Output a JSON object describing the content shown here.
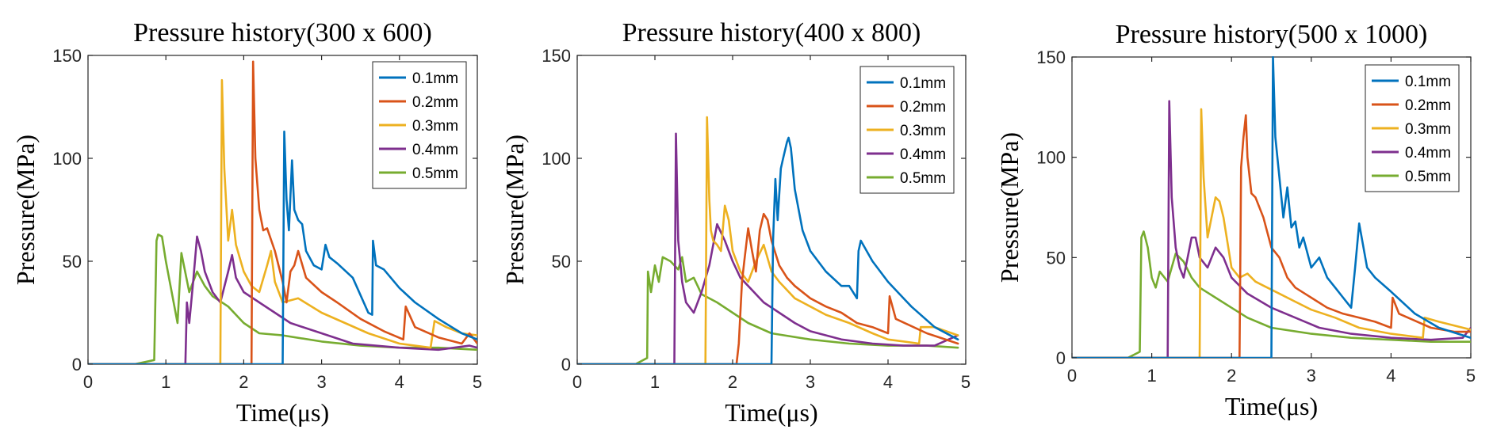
{
  "chart_data": [
    {
      "type": "line",
      "title": "Pressure history(300 x 600)",
      "xlabel": "Time(μs)",
      "ylabel": "Pressure(MPa)",
      "xlim": [
        0,
        5
      ],
      "ylim": [
        0,
        150
      ],
      "xticks": [
        "0",
        "1",
        "2",
        "3",
        "4",
        "5"
      ],
      "yticks": [
        "0",
        "50",
        "100",
        "150"
      ],
      "grid": false,
      "legend": "top-right",
      "series": [
        {
          "name": "0.1mm",
          "color": "#0072BD",
          "x": [
            0,
            2.5,
            2.52,
            2.55,
            2.58,
            2.62,
            2.65,
            2.7,
            2.75,
            2.8,
            2.9,
            3.0,
            3.05,
            3.1,
            3.2,
            3.4,
            3.6,
            3.65,
            3.66,
            3.7,
            3.8,
            4.0,
            4.2,
            4.5,
            4.8,
            5.0
          ],
          "y": [
            0,
            0,
            113,
            80,
            65,
            99,
            75,
            70,
            68,
            55,
            48,
            46,
            58,
            52,
            49,
            42,
            25,
            24,
            60,
            48,
            46,
            37,
            30,
            22,
            15,
            12
          ]
        },
        {
          "name": "0.2mm",
          "color": "#D95319",
          "x": [
            0,
            2.1,
            2.12,
            2.15,
            2.2,
            2.25,
            2.3,
            2.4,
            2.5,
            2.55,
            2.6,
            2.65,
            2.7,
            2.8,
            3.0,
            3.2,
            3.5,
            3.8,
            4.05,
            4.08,
            4.2,
            4.5,
            4.8,
            4.9,
            5.0
          ],
          "y": [
            0,
            0,
            147,
            100,
            75,
            65,
            66,
            55,
            40,
            30,
            45,
            48,
            55,
            42,
            35,
            30,
            22,
            16,
            12,
            28,
            18,
            13,
            10,
            15,
            10
          ]
        },
        {
          "name": "0.3mm",
          "color": "#EDB120",
          "x": [
            0,
            1.7,
            1.72,
            1.75,
            1.8,
            1.85,
            1.9,
            2.0,
            2.1,
            2.2,
            2.3,
            2.35,
            2.4,
            2.5,
            2.7,
            3.0,
            3.3,
            3.6,
            4.0,
            4.4,
            4.45,
            4.6,
            4.8,
            5.0
          ],
          "y": [
            0,
            0,
            138,
            95,
            60,
            75,
            58,
            45,
            38,
            35,
            48,
            55,
            40,
            30,
            32,
            25,
            20,
            15,
            10,
            8,
            21,
            18,
            15,
            14
          ]
        },
        {
          "name": "0.4mm",
          "color": "#7E2F8E",
          "x": [
            0,
            1.25,
            1.27,
            1.3,
            1.35,
            1.4,
            1.45,
            1.5,
            1.6,
            1.7,
            1.8,
            1.85,
            1.9,
            2.0,
            2.2,
            2.4,
            2.6,
            3.0,
            3.4,
            4.0,
            4.5,
            4.9,
            5.0
          ],
          "y": [
            0,
            0,
            30,
            20,
            40,
            62,
            55,
            45,
            35,
            30,
            45,
            53,
            42,
            35,
            30,
            25,
            20,
            15,
            10,
            8,
            7,
            9,
            8
          ]
        },
        {
          "name": "0.5mm",
          "color": "#77AC30",
          "x": [
            0,
            0.6,
            0.85,
            0.88,
            0.9,
            0.95,
            1.0,
            1.05,
            1.1,
            1.15,
            1.2,
            1.3,
            1.4,
            1.5,
            1.6,
            1.8,
            2.0,
            2.2,
            2.5,
            3.0,
            3.5,
            4.0,
            4.5,
            5.0
          ],
          "y": [
            0,
            0,
            2,
            60,
            63,
            62,
            50,
            40,
            30,
            20,
            54,
            35,
            45,
            38,
            33,
            28,
            20,
            15,
            14,
            11,
            9,
            8,
            8,
            7
          ]
        }
      ]
    },
    {
      "type": "line",
      "title": "Pressure history(400 x 800)",
      "xlabel": "Time(μs)",
      "ylabel": "Pressure(MPa)",
      "xlim": [
        0,
        5
      ],
      "ylim": [
        0,
        150
      ],
      "xticks": [
        "0",
        "1",
        "2",
        "3",
        "4",
        "5"
      ],
      "yticks": [
        "0",
        "50",
        "100",
        "150"
      ],
      "grid": false,
      "legend": "top-right",
      "series": [
        {
          "name": "0.1mm",
          "color": "#0072BD",
          "x": [
            0,
            2.5,
            2.52,
            2.55,
            2.58,
            2.62,
            2.65,
            2.7,
            2.72,
            2.75,
            2.8,
            2.9,
            3.0,
            3.2,
            3.4,
            3.5,
            3.6,
            3.62,
            3.65,
            3.8,
            4.0,
            4.3,
            4.6,
            4.9
          ],
          "y": [
            0,
            0,
            60,
            90,
            70,
            95,
            100,
            108,
            110,
            105,
            85,
            65,
            55,
            45,
            38,
            38,
            32,
            55,
            60,
            50,
            40,
            28,
            18,
            12
          ]
        },
        {
          "name": "0.2mm",
          "color": "#D95319",
          "x": [
            0,
            2.05,
            2.08,
            2.12,
            2.15,
            2.2,
            2.25,
            2.3,
            2.35,
            2.4,
            2.45,
            2.5,
            2.6,
            2.7,
            2.8,
            3.0,
            3.2,
            3.4,
            3.6,
            3.8,
            4.0,
            4.02,
            4.1,
            4.5,
            4.9
          ],
          "y": [
            0,
            0,
            10,
            40,
            50,
            66,
            55,
            45,
            65,
            73,
            70,
            60,
            48,
            42,
            38,
            32,
            28,
            25,
            20,
            18,
            15,
            33,
            22,
            15,
            10
          ]
        },
        {
          "name": "0.3mm",
          "color": "#EDB120",
          "x": [
            0,
            1.65,
            1.67,
            1.7,
            1.72,
            1.75,
            1.8,
            1.85,
            1.9,
            1.95,
            2.0,
            2.1,
            2.2,
            2.3,
            2.4,
            2.5,
            2.6,
            2.8,
            3.0,
            3.2,
            3.5,
            3.8,
            4.0,
            4.4,
            4.42,
            4.6,
            4.9
          ],
          "y": [
            0,
            0,
            120,
            80,
            65,
            60,
            58,
            55,
            77,
            70,
            55,
            45,
            40,
            50,
            58,
            45,
            40,
            32,
            28,
            24,
            20,
            15,
            12,
            10,
            18,
            18,
            14
          ]
        },
        {
          "name": "0.4mm",
          "color": "#7E2F8E",
          "x": [
            0,
            1.25,
            1.27,
            1.3,
            1.35,
            1.4,
            1.5,
            1.6,
            1.7,
            1.8,
            1.9,
            2.0,
            2.1,
            2.2,
            2.4,
            2.6,
            2.8,
            3.0,
            3.4,
            3.8,
            4.2,
            4.6,
            4.9
          ],
          "y": [
            0,
            0,
            112,
            60,
            40,
            30,
            25,
            35,
            48,
            68,
            60,
            50,
            42,
            38,
            30,
            25,
            20,
            16,
            12,
            10,
            9,
            9,
            14
          ]
        },
        {
          "name": "0.5mm",
          "color": "#77AC30",
          "x": [
            0,
            0.75,
            0.9,
            0.91,
            0.95,
            1.0,
            1.05,
            1.1,
            1.2,
            1.25,
            1.3,
            1.35,
            1.4,
            1.5,
            1.6,
            1.8,
            2.0,
            2.2,
            2.5,
            3.0,
            3.5,
            4.0,
            4.5,
            4.9
          ],
          "y": [
            0,
            0,
            3,
            45,
            35,
            48,
            40,
            52,
            50,
            48,
            46,
            52,
            40,
            42,
            34,
            30,
            25,
            20,
            15,
            12,
            10,
            9,
            9,
            8
          ]
        }
      ]
    },
    {
      "type": "line",
      "title": "Pressure history(500 x 1000)",
      "xlabel": "Time(μs)",
      "ylabel": "Pressure(MPa)",
      "xlim": [
        0,
        5
      ],
      "ylim": [
        0,
        150
      ],
      "xticks": [
        "0",
        "1",
        "2",
        "3",
        "4",
        "5"
      ],
      "yticks": [
        "0",
        "50",
        "100",
        "150"
      ],
      "grid": false,
      "legend": "top-right",
      "series": [
        {
          "name": "0.1mm",
          "color": "#0072BD",
          "x": [
            0,
            2.5,
            2.52,
            2.55,
            2.6,
            2.65,
            2.7,
            2.75,
            2.8,
            2.85,
            2.9,
            3.0,
            3.1,
            3.2,
            3.3,
            3.4,
            3.5,
            3.55,
            3.6,
            3.7,
            3.8,
            4.0,
            4.3,
            4.6,
            5.0
          ],
          "y": [
            0,
            0,
            150,
            110,
            90,
            70,
            85,
            65,
            68,
            55,
            60,
            45,
            50,
            40,
            35,
            30,
            25,
            45,
            67,
            45,
            40,
            33,
            22,
            15,
            10
          ]
        },
        {
          "name": "0.2mm",
          "color": "#D95319",
          "x": [
            0,
            2.1,
            2.12,
            2.15,
            2.18,
            2.2,
            2.25,
            2.3,
            2.4,
            2.5,
            2.6,
            2.7,
            2.8,
            3.0,
            3.2,
            3.4,
            3.6,
            3.8,
            4.0,
            4.02,
            4.1,
            4.5,
            4.8,
            5.0
          ],
          "y": [
            0,
            0,
            95,
            110,
            121,
            100,
            82,
            80,
            70,
            55,
            50,
            40,
            35,
            30,
            25,
            22,
            20,
            18,
            15,
            30,
            22,
            15,
            13,
            13
          ]
        },
        {
          "name": "0.3mm",
          "color": "#EDB120",
          "x": [
            0,
            1.6,
            1.62,
            1.65,
            1.7,
            1.75,
            1.8,
            1.85,
            1.9,
            2.0,
            2.1,
            2.2,
            2.3,
            2.4,
            2.6,
            2.8,
            3.0,
            3.3,
            3.6,
            4.0,
            4.4,
            4.42,
            4.6,
            5.0
          ],
          "y": [
            0,
            0,
            124,
            90,
            60,
            70,
            80,
            78,
            70,
            45,
            40,
            42,
            38,
            36,
            32,
            28,
            24,
            20,
            15,
            12,
            10,
            20,
            18,
            14
          ]
        },
        {
          "name": "0.4mm",
          "color": "#7E2F8E",
          "x": [
            0,
            1.2,
            1.22,
            1.25,
            1.3,
            1.35,
            1.4,
            1.5,
            1.55,
            1.6,
            1.7,
            1.8,
            1.9,
            2.0,
            2.2,
            2.5,
            2.8,
            3.1,
            3.5,
            4.0,
            4.5,
            4.9,
            5.0
          ],
          "y": [
            0,
            0,
            128,
            80,
            55,
            45,
            40,
            60,
            60,
            50,
            45,
            55,
            50,
            40,
            32,
            25,
            20,
            15,
            12,
            10,
            9,
            10,
            15
          ]
        },
        {
          "name": "0.5mm",
          "color": "#77AC30",
          "x": [
            0,
            0.7,
            0.85,
            0.87,
            0.9,
            0.95,
            1.0,
            1.05,
            1.1,
            1.2,
            1.3,
            1.4,
            1.5,
            1.6,
            1.8,
            2.0,
            2.2,
            2.5,
            3.0,
            3.5,
            4.0,
            4.5,
            5.0
          ],
          "y": [
            0,
            0,
            3,
            60,
            63,
            55,
            40,
            35,
            43,
            38,
            52,
            48,
            40,
            35,
            30,
            25,
            20,
            15,
            12,
            10,
            9,
            8,
            8
          ]
        }
      ]
    }
  ]
}
